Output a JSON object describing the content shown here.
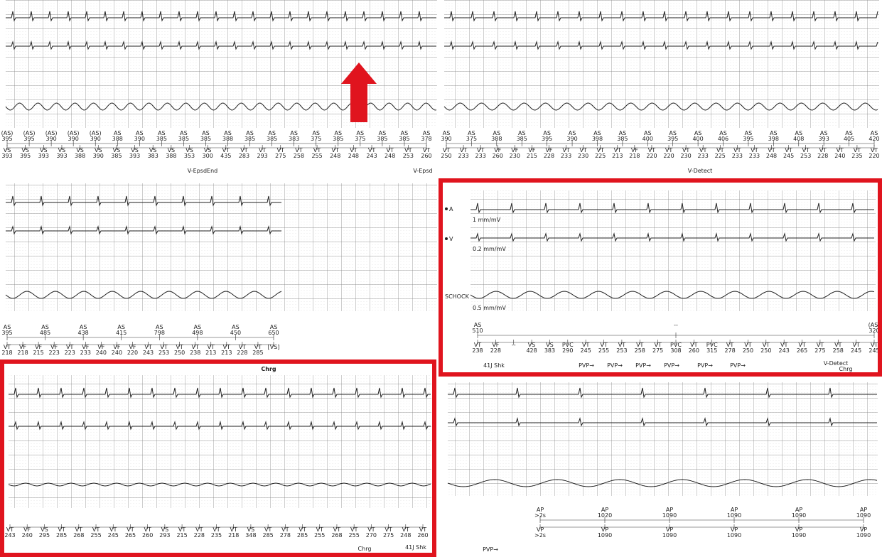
{
  "panels": [
    {
      "top_row": [
        [
          "(AS)",
          "395"
        ],
        [
          "(AS)",
          "395"
        ],
        [
          "(AS)",
          "390"
        ],
        [
          "(AS)",
          "390"
        ],
        [
          "(AS)",
          "390"
        ],
        [
          "AS",
          "388"
        ],
        [
          "AS",
          "390"
        ],
        [
          "AS",
          "385"
        ],
        [
          "AS",
          "385"
        ],
        [
          "AS",
          "385"
        ],
        [
          "AS",
          "388"
        ],
        [
          "AS",
          "385"
        ],
        [
          "AS",
          "385"
        ],
        [
          "AS",
          "383"
        ],
        [
          "AS",
          "375"
        ],
        [
          "AS",
          "385"
        ],
        [
          "AS",
          "375"
        ],
        [
          "AS",
          "385"
        ],
        [
          "AS",
          "385"
        ],
        [
          "AS",
          "378"
        ]
      ],
      "bottom_row": [
        [
          "VS",
          "393"
        ],
        [
          "VS",
          "395"
        ],
        [
          "VS",
          "393"
        ],
        [
          "VS",
          "393"
        ],
        [
          "VS",
          "388"
        ],
        [
          "VS",
          "390"
        ],
        [
          "VS",
          "385"
        ],
        [
          "VS",
          "393"
        ],
        [
          "VS",
          "383"
        ],
        [
          "VS",
          "388"
        ],
        [
          "VS",
          "353"
        ],
        [
          "VS",
          "300"
        ],
        [
          "VT",
          "435"
        ],
        [
          "VT",
          "283"
        ],
        [
          "VT",
          "293"
        ],
        [
          "VT",
          "275"
        ],
        [
          "VT",
          "258"
        ],
        [
          "VT",
          "255"
        ],
        [
          "VT",
          "248"
        ],
        [
          "VT",
          "248"
        ],
        [
          "VT",
          "243"
        ],
        [
          "VT",
          "248"
        ],
        [
          "VT",
          "253"
        ],
        [
          "VT",
          "260"
        ]
      ],
      "events": [
        "V-EpsdEnd",
        "V-Epsd"
      ]
    },
    {
      "top_row": [
        [
          "AS",
          "390"
        ],
        [
          "AS",
          "375"
        ],
        [
          "AS",
          "388"
        ],
        [
          "AS",
          "385"
        ],
        [
          "AS",
          "395"
        ],
        [
          "AS",
          "390"
        ],
        [
          "AS",
          "398"
        ],
        [
          "AS",
          "385"
        ],
        [
          "AS",
          "400"
        ],
        [
          "AS",
          "395"
        ],
        [
          "AS",
          "400"
        ],
        [
          "AS",
          "406"
        ],
        [
          "AS",
          "395"
        ],
        [
          "AS",
          "398"
        ],
        [
          "AS",
          "408"
        ],
        [
          "AS",
          "393"
        ],
        [
          "AS",
          "405"
        ],
        [
          "AS",
          "420"
        ]
      ],
      "bottom_row": [
        [
          "VT",
          "250"
        ],
        [
          "VT",
          "233"
        ],
        [
          "VT",
          "233"
        ],
        [
          "VF",
          "260"
        ],
        [
          "VF",
          "230"
        ],
        [
          "VF",
          "215"
        ],
        [
          "VF",
          "228"
        ],
        [
          "VT",
          "233"
        ],
        [
          "VT",
          "230"
        ],
        [
          "VT",
          "225"
        ],
        [
          "VT",
          "213"
        ],
        [
          "VF",
          "218"
        ],
        [
          "VT",
          "220"
        ],
        [
          "VT",
          "220"
        ],
        [
          "VT",
          "230"
        ],
        [
          "VT",
          "233"
        ],
        [
          "VT",
          "225"
        ],
        [
          "VT",
          "233"
        ],
        [
          "VT",
          "233"
        ],
        [
          "VT",
          "248"
        ],
        [
          "VT",
          "245"
        ],
        [
          "VT",
          "253"
        ],
        [
          "VT",
          "228"
        ],
        [
          "VT",
          "240"
        ],
        [
          "VT",
          "235"
        ],
        [
          "VT",
          "220"
        ]
      ],
      "events": [
        "V-Detect"
      ]
    },
    {
      "top_row": [
        [
          "AS",
          "395"
        ],
        [
          "AS",
          "485"
        ],
        [
          "AS",
          "438"
        ],
        [
          "AS",
          "415"
        ],
        [
          "AS",
          "798"
        ],
        [
          "AS",
          "498"
        ],
        [
          "AS",
          "450"
        ],
        [
          "AS",
          "650"
        ]
      ],
      "bottom_row": [
        [
          "VT",
          "218"
        ],
        [
          "VF",
          "218"
        ],
        [
          "VF",
          "215"
        ],
        [
          "VF",
          "223"
        ],
        [
          "VT",
          "223"
        ],
        [
          "VF",
          "233"
        ],
        [
          "VF",
          "240"
        ],
        [
          "VF",
          "240"
        ],
        [
          "VF",
          "220"
        ],
        [
          "VT",
          "243"
        ],
        [
          "VT",
          "253"
        ],
        [
          "VT",
          "250"
        ],
        [
          "VT",
          "238"
        ],
        [
          "VT",
          "213"
        ],
        [
          "VT",
          "213"
        ],
        [
          "VT",
          "228"
        ],
        [
          "VT",
          "285"
        ],
        [
          "[VS]",
          ""
        ]
      ],
      "events": []
    },
    {
      "top_row": [
        [
          "AS",
          "510"
        ],
        [
          "--",
          ""
        ],
        [
          "(AS)",
          "320"
        ]
      ],
      "bottom_row": [
        [
          "VT",
          "238"
        ],
        [
          "VF",
          "228"
        ],
        [
          "--",
          ""
        ],
        [
          "VS",
          "428"
        ],
        [
          "VS",
          "383"
        ],
        [
          "PVC",
          "290"
        ],
        [
          "VT",
          "245"
        ],
        [
          "VT",
          "255"
        ],
        [
          "VT",
          "253"
        ],
        [
          "VT",
          "258"
        ],
        [
          "VT",
          "275"
        ],
        [
          "PVC",
          "308"
        ],
        [
          "VT",
          "260"
        ],
        [
          "PVC",
          "315"
        ],
        [
          "VT",
          "278"
        ],
        [
          "VT",
          "250"
        ],
        [
          "VT",
          "250"
        ],
        [
          "VT",
          "243"
        ],
        [
          "VT",
          "265"
        ],
        [
          "VT",
          "275"
        ],
        [
          "VT",
          "258"
        ],
        [
          "VT",
          "245"
        ],
        [
          "VT",
          "245"
        ]
      ],
      "events": [
        "41J Shk",
        "PVP→",
        "PVP→",
        "PVP→",
        "PVP→",
        "PVP→",
        "PVP→",
        "V-Detect",
        "Chrg"
      ],
      "channel_labels": [
        "A",
        "V",
        "SCHOCK",
        "1 mm/mV",
        "0.2 mm/mV",
        "0.5 mm/mV"
      ]
    },
    {
      "title": "Chrg",
      "top_row": [],
      "bottom_row": [
        [
          "VT",
          "243"
        ],
        [
          "VF",
          "240"
        ],
        [
          "VS",
          "295"
        ],
        [
          "VT",
          "285"
        ],
        [
          "VT",
          "268"
        ],
        [
          "VT",
          "255"
        ],
        [
          "VT",
          "245"
        ],
        [
          "VT",
          "265"
        ],
        [
          "VT",
          "260"
        ],
        [
          "VS",
          "293"
        ],
        [
          "VT",
          "215"
        ],
        [
          "VT",
          "228"
        ],
        [
          "VT",
          "235"
        ],
        [
          "VT",
          "218"
        ],
        [
          "VS",
          "348"
        ],
        [
          "VT",
          "285"
        ],
        [
          "VT",
          "278"
        ],
        [
          "VT",
          "285"
        ],
        [
          "VT",
          "255"
        ],
        [
          "VT",
          "268"
        ],
        [
          "VT",
          "255"
        ],
        [
          "VT",
          "270"
        ],
        [
          "VT",
          "275"
        ],
        [
          "VT",
          "248"
        ],
        [
          "VT",
          "260"
        ]
      ],
      "events": [
        "Chrg",
        "41J Shk"
      ]
    },
    {
      "top_row": [
        [
          "AP",
          ">2s"
        ],
        [
          "AP",
          "1020"
        ],
        [
          "AP",
          "1090"
        ],
        [
          "AP",
          "1090"
        ],
        [
          "AP",
          "1090"
        ],
        [
          "AP",
          "1090"
        ]
      ],
      "bottom_row": [
        [
          "VP",
          ">2s"
        ],
        [
          "VP",
          "1090"
        ],
        [
          "VP",
          "1090"
        ],
        [
          "VP",
          "1090"
        ],
        [
          "VP",
          "1090"
        ],
        [
          "VP",
          "1090"
        ]
      ],
      "events": [
        "PVP→"
      ]
    }
  ]
}
